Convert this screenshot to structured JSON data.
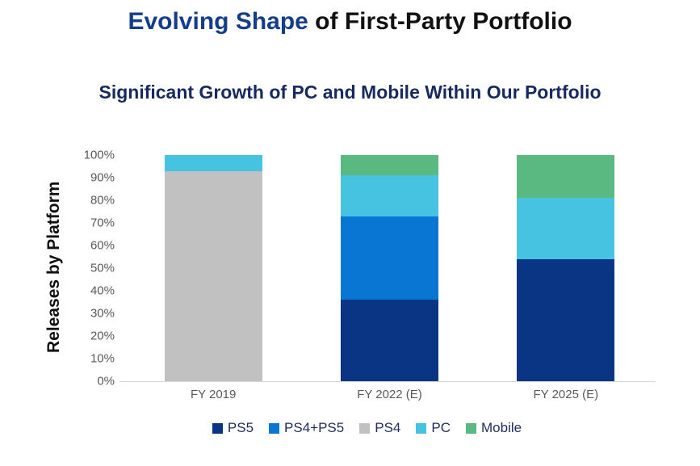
{
  "header": {
    "title_highlight": "Evolving Shape",
    "title_rest": " of First-Party Portfolio",
    "subtitle": "Significant Growth of PC and Mobile Within Our Portfolio"
  },
  "colors": {
    "title_accent": "#143e8c",
    "title_text": "#111111",
    "subtitle_text": "#172a5f",
    "legend_text": "#1d2e5e",
    "tick_text": "#595959",
    "xlabel_text": "#595959",
    "axis_line": "#d8d8d8"
  },
  "chart_data": {
    "type": "bar",
    "stacked": true,
    "title": "Significant Growth of PC and Mobile Within Our Portfolio",
    "xlabel": "",
    "ylabel": "Releases by Platform",
    "ylim": [
      0,
      100
    ],
    "ytick_step": 10,
    "ytick_labels": [
      "0%",
      "10%",
      "20%",
      "30%",
      "40%",
      "50%",
      "60%",
      "70%",
      "80%",
      "90%",
      "100%"
    ],
    "categories": [
      "FY 2019",
      "FY 2022 (E)",
      "FY 2025 (E)"
    ],
    "series": [
      {
        "name": "PS5",
        "color": "#0a3585",
        "values": [
          0,
          36,
          54
        ]
      },
      {
        "name": "PS4+PS5",
        "color": "#0876d2",
        "values": [
          0,
          37,
          0
        ]
      },
      {
        "name": "PS4",
        "color": "#c1c1c1",
        "values": [
          93,
          0,
          0
        ]
      },
      {
        "name": "PC",
        "color": "#45c3e0",
        "values": [
          7,
          18,
          27
        ]
      },
      {
        "name": "Mobile",
        "color": "#59b981",
        "values": [
          0,
          9,
          19
        ]
      }
    ],
    "stack_order": "bottom-to-top in series order",
    "legend_position": "bottom",
    "grid": false,
    "unit": "percent of releases"
  }
}
